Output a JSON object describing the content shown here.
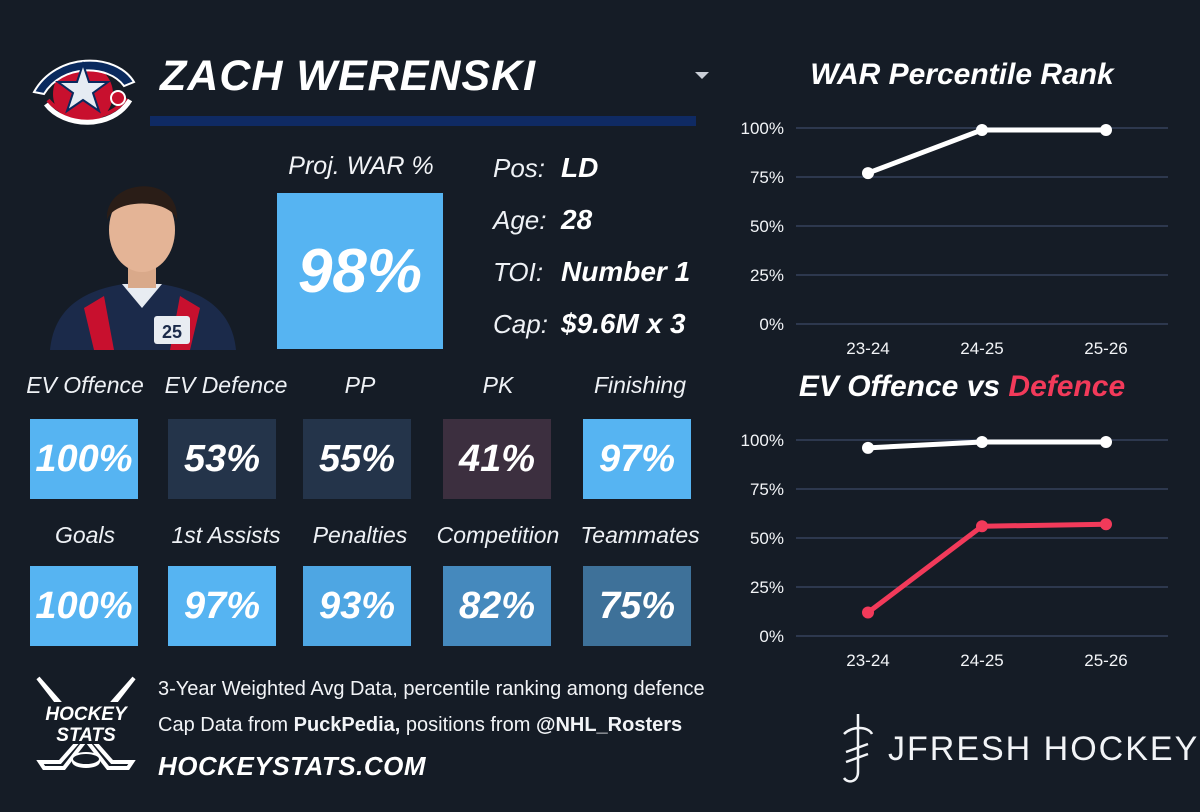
{
  "player": {
    "name": "ZACH WERENSKI",
    "jersey_number": "25",
    "proj_war_label": "Proj. WAR %",
    "proj_war_value": "98%"
  },
  "info": [
    {
      "key": "Pos:",
      "value": "LD"
    },
    {
      "key": "Age:",
      "value": "28"
    },
    {
      "key": "TOI:",
      "value": "Number 1"
    },
    {
      "key": "Cap:",
      "value": "$9.6M x 3"
    }
  ],
  "tiles": [
    {
      "label": "EV Offence",
      "value": "100%",
      "color": "#56b4f2"
    },
    {
      "label": "EV Defence",
      "value": "53%",
      "color": "#24344a"
    },
    {
      "label": "PP",
      "value": "55%",
      "color": "#24344a"
    },
    {
      "label": "PK",
      "value": "41%",
      "color": "#3c2f3f"
    },
    {
      "label": "Finishing",
      "value": "97%",
      "color": "#56b4f2"
    },
    {
      "label": "Goals",
      "value": "100%",
      "color": "#56b4f2"
    },
    {
      "label": "1st Assists",
      "value": "97%",
      "color": "#56b4f2"
    },
    {
      "label": "Penalties",
      "value": "93%",
      "color": "#4ea6e3"
    },
    {
      "label": "Competition",
      "value": "82%",
      "color": "#4589bd"
    },
    {
      "label": "Teammates",
      "value": "75%",
      "color": "#3e7199"
    }
  ],
  "footer": {
    "line1": "3-Year Weighted Avg Data, percentile ranking among defence",
    "line2_prefix": "Cap Data from ",
    "line2_source": "PuckPedia,",
    "line2_mid": " positions from ",
    "line2_handle": "@NHL_Rosters",
    "url": "HOCKEYSTATS.COM",
    "brand": "JFRESH HOCKEY",
    "logo_text_top": "HOCKEY",
    "logo_text_bottom": "STATS"
  },
  "charts": {
    "war_title": "WAR Percentile Rank",
    "ev_title_main": "EV Offence vs ",
    "ev_title_accent": "Defence"
  },
  "colors": {
    "background": "#151c26",
    "accent_blue": "#56b4f2",
    "defence_red": "#f23a5a",
    "line_white": "#ffffff",
    "grid": "#3c4a66"
  },
  "chart_data": [
    {
      "type": "line",
      "title": "WAR Percentile Rank",
      "categories": [
        "23-24",
        "24-25",
        "25-26"
      ],
      "series": [
        {
          "name": "WAR",
          "values": [
            77,
            99,
            99
          ],
          "color": "#ffffff"
        }
      ],
      "ylim": [
        0,
        100
      ],
      "yticks": [
        "0%",
        "25%",
        "50%",
        "75%",
        "100%"
      ],
      "grid": true
    },
    {
      "type": "line",
      "title": "EV Offence vs Defence",
      "categories": [
        "23-24",
        "24-25",
        "25-26"
      ],
      "series": [
        {
          "name": "EV Offence",
          "values": [
            96,
            99,
            99
          ],
          "color": "#ffffff"
        },
        {
          "name": "EV Defence",
          "values": [
            12,
            56,
            57
          ],
          "color": "#f23a5a"
        }
      ],
      "ylim": [
        0,
        100
      ],
      "yticks": [
        "0%",
        "25%",
        "50%",
        "75%",
        "100%"
      ],
      "grid": true
    }
  ]
}
